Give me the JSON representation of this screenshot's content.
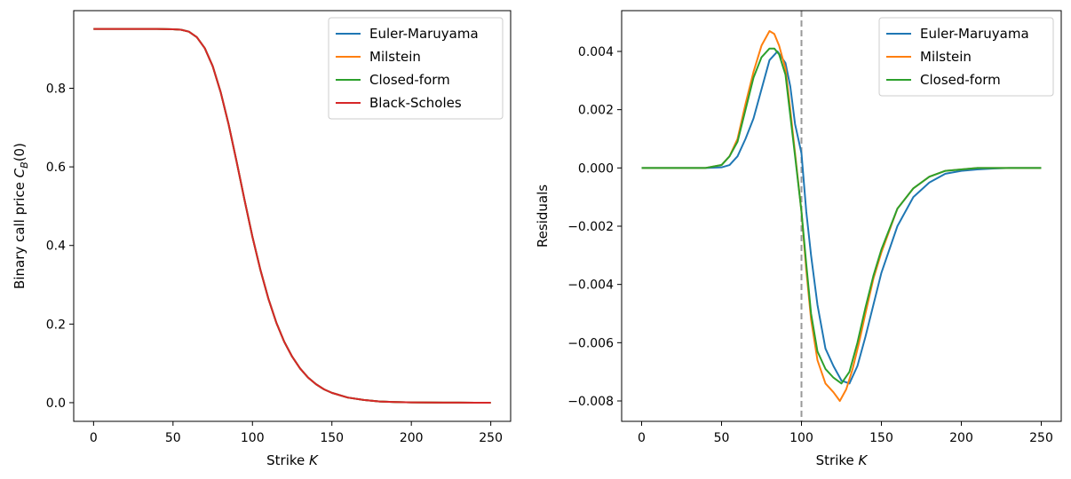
{
  "chart_data": [
    {
      "type": "line",
      "xlabel": "Strike K",
      "ylabel": "Binary call price C_B(0)",
      "xlim": [
        -12.5,
        262.5
      ],
      "ylim": [
        -0.0475,
        0.9975
      ],
      "xticks": [
        0,
        50,
        100,
        150,
        200,
        250
      ],
      "xtick_labels": [
        "0",
        "50",
        "100",
        "150",
        "200",
        "250"
      ],
      "yticks": [
        0.0,
        0.2,
        0.4,
        0.6,
        0.8
      ],
      "ytick_labels": [
        "0.0",
        "0.2",
        "0.4",
        "0.6",
        "0.8"
      ],
      "grid": false,
      "legend_position": "top-right",
      "series": [
        {
          "name": "Euler-Maruyama",
          "color": "#1f77b4"
        },
        {
          "name": "Milstein",
          "color": "#ff7f0e"
        },
        {
          "name": "Closed-form",
          "color": "#2ca02c"
        },
        {
          "name": "Black-Scholes",
          "color": "#d62728"
        }
      ],
      "x": [
        0,
        10,
        20,
        30,
        40,
        50,
        55,
        60,
        65,
        70,
        75,
        80,
        85,
        90,
        95,
        100,
        105,
        110,
        115,
        120,
        125,
        130,
        135,
        140,
        145,
        150,
        160,
        170,
        180,
        190,
        200,
        210,
        220,
        230,
        240,
        250
      ],
      "values": [
        0.951,
        0.951,
        0.951,
        0.951,
        0.951,
        0.95,
        0.949,
        0.944,
        0.93,
        0.902,
        0.856,
        0.79,
        0.708,
        0.614,
        0.516,
        0.422,
        0.338,
        0.265,
        0.204,
        0.155,
        0.117,
        0.087,
        0.064,
        0.047,
        0.034,
        0.025,
        0.013,
        0.007,
        0.003,
        0.0015,
        0.0008,
        0.0004,
        0.0002,
        0.0001,
        0.0,
        0.0
      ]
    },
    {
      "type": "line",
      "xlabel": "Strike K",
      "ylabel": "Residuals",
      "xlim": [
        -12.5,
        262.5
      ],
      "ylim": [
        -0.0087,
        0.0054
      ],
      "xticks": [
        0,
        50,
        100,
        150,
        200,
        250
      ],
      "xtick_labels": [
        "0",
        "50",
        "100",
        "150",
        "200",
        "250"
      ],
      "yticks": [
        -0.008,
        -0.006,
        -0.004,
        -0.002,
        0.0,
        0.002,
        0.004
      ],
      "ytick_labels": [
        "−0.008",
        "−0.006",
        "−0.004",
        "−0.002",
        "0.000",
        "0.002",
        "0.004"
      ],
      "grid": false,
      "legend_position": "top-right",
      "vline": {
        "x": 100,
        "color": "#999999",
        "style": "dashed"
      },
      "series": [
        {
          "name": "Euler-Maruyama",
          "color": "#1f77b4",
          "x": [
            0,
            40,
            50,
            55,
            60,
            65,
            70,
            75,
            80,
            85,
            90,
            93,
            96,
            100,
            103,
            106,
            110,
            115,
            120,
            125,
            130,
            135,
            140,
            145,
            150,
            160,
            170,
            180,
            190,
            200,
            210,
            220,
            230,
            250
          ],
          "y": [
            0.0,
            0.0,
            2e-05,
            0.0001,
            0.0004,
            0.001,
            0.0017,
            0.0027,
            0.0037,
            0.004,
            0.0036,
            0.0028,
            0.0015,
            0.0005,
            -0.0015,
            -0.003,
            -0.0047,
            -0.0062,
            -0.0068,
            -0.0073,
            -0.0074,
            -0.0068,
            -0.0058,
            -0.0047,
            -0.0036,
            -0.002,
            -0.001,
            -0.0005,
            -0.0002,
            -0.0001,
            -5e-05,
            -2e-05,
            0.0,
            0.0
          ]
        },
        {
          "name": "Milstein",
          "color": "#ff7f0e",
          "x": [
            0,
            40,
            50,
            55,
            60,
            65,
            70,
            75,
            80,
            83,
            86,
            90,
            93,
            96,
            100,
            103,
            106,
            110,
            115,
            120,
            124,
            128,
            132,
            136,
            140,
            145,
            150,
            160,
            170,
            180,
            190,
            200,
            210,
            220,
            250
          ],
          "y": [
            0.0,
            0.0,
            0.0001,
            0.0004,
            0.001,
            0.0022,
            0.0033,
            0.0042,
            0.0047,
            0.0046,
            0.0042,
            0.0034,
            0.002,
            0.0005,
            -0.0015,
            -0.0035,
            -0.0052,
            -0.0066,
            -0.0074,
            -0.0077,
            -0.008,
            -0.0076,
            -0.0069,
            -0.006,
            -0.005,
            -0.0038,
            -0.0029,
            -0.0014,
            -0.0007,
            -0.0003,
            -0.0001,
            -5e-05,
            0.0,
            0.0,
            0.0
          ]
        },
        {
          "name": "Closed-form",
          "color": "#2ca02c",
          "x": [
            0,
            40,
            50,
            55,
            60,
            65,
            70,
            75,
            80,
            83,
            86,
            90,
            93,
            96,
            100,
            103,
            106,
            110,
            115,
            120,
            125,
            130,
            135,
            140,
            145,
            150,
            160,
            170,
            180,
            190,
            200,
            210,
            220,
            250
          ],
          "y": [
            0.0,
            0.0,
            0.0001,
            0.0004,
            0.0009,
            0.002,
            0.0031,
            0.0038,
            0.0041,
            0.0041,
            0.0039,
            0.0032,
            0.0018,
            0.0004,
            -0.0015,
            -0.0033,
            -0.005,
            -0.0063,
            -0.0069,
            -0.0072,
            -0.0074,
            -0.007,
            -0.006,
            -0.0048,
            -0.0037,
            -0.0028,
            -0.0014,
            -0.0007,
            -0.0003,
            -0.0001,
            -5e-05,
            0.0,
            0.0,
            0.0
          ]
        }
      ]
    }
  ]
}
